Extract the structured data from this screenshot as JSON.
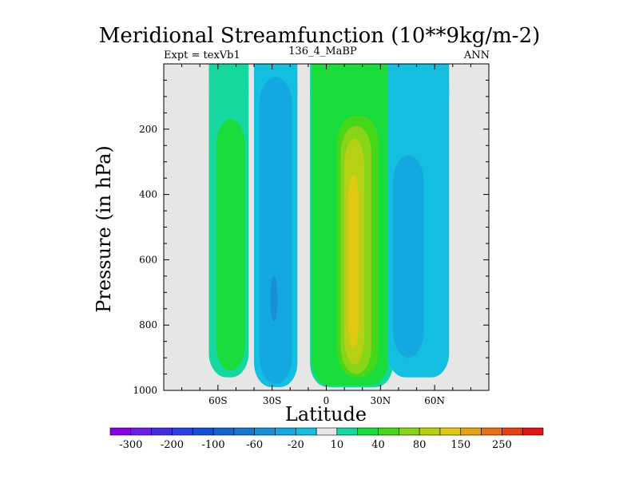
{
  "chart_data": {
    "type": "heatmap",
    "title": "Meridional Streamfunction (10**9kg/m-2)",
    "subtitle_left": "Expt = texVb1",
    "subtitle_center": "136_4_MaBP",
    "subtitle_right": "ANN",
    "xlabel": "Latitude",
    "ylabel": "Pressure (in hPa)",
    "xlim": [
      -90,
      90
    ],
    "ylim": [
      1000,
      0
    ],
    "x_ticks": [
      -60,
      -30,
      0,
      30,
      60
    ],
    "x_tick_labels": [
      "60S",
      "30S",
      "0",
      "30N",
      "60N"
    ],
    "y_ticks": [
      200,
      400,
      600,
      800,
      1000
    ],
    "y_tick_labels": [
      "200",
      "400",
      "600",
      "800",
      "1000"
    ],
    "colorbar": {
      "levels": [
        -300,
        -250,
        -200,
        -150,
        -100,
        -80,
        -60,
        -40,
        -20,
        -10,
        10,
        20,
        40,
        60,
        80,
        100,
        150,
        200,
        250,
        300
      ],
      "labels": [
        "-300",
        "-200",
        "-100",
        "-60",
        "-20",
        "10",
        "40",
        "80",
        "150",
        "250"
      ],
      "colors": [
        "#8a00e6",
        "#6a1ee6",
        "#4230e0",
        "#2a40e6",
        "#1450d8",
        "#1464d0",
        "#1478d0",
        "#1890d8",
        "#14a8e0",
        "#14bee0",
        "#e6e6e6",
        "#14d8a0",
        "#18dc3c",
        "#44d818",
        "#88d418",
        "#b8d014",
        "#e0c814",
        "#e8a014",
        "#e87014",
        "#e84014",
        "#e01414"
      ]
    },
    "contour_regions": [
      {
        "name": "band-60S",
        "min_value": 10,
        "max_value": 20,
        "lat_range": [
          -65,
          -43
        ],
        "p_range": [
          0,
          960
        ]
      },
      {
        "name": "core-60S",
        "min_value": 20,
        "max_value": 40,
        "lat_range": [
          -61,
          -45
        ],
        "p_range": [
          170,
          940
        ]
      },
      {
        "name": "band-30S",
        "min_value": -20,
        "max_value": -10,
        "lat_range": [
          -40,
          -16
        ],
        "p_range": [
          0,
          990
        ]
      },
      {
        "name": "core-30S",
        "min_value": -40,
        "max_value": -20,
        "lat_range": [
          -37,
          -19
        ],
        "p_range": [
          40,
          980
        ]
      },
      {
        "name": "inner-30S",
        "min_value": -60,
        "max_value": -40,
        "lat_range": [
          -31,
          -27
        ],
        "p_range": [
          650,
          790
        ]
      },
      {
        "name": "band-eq-N",
        "min_value": 10,
        "max_value": 20,
        "lat_range": [
          -9,
          37
        ],
        "p_range": [
          0,
          990
        ]
      },
      {
        "name": "core-eq-N",
        "min_value": 20,
        "max_value": 40,
        "lat_range": [
          -8,
          34
        ],
        "p_range": [
          0,
          985
        ]
      },
      {
        "name": "level-60",
        "min_value": 40,
        "max_value": 60,
        "lat_range": [
          6,
          29
        ],
        "p_range": [
          160,
          960
        ]
      },
      {
        "name": "level-80",
        "min_value": 60,
        "max_value": 80,
        "lat_range": [
          8,
          25
        ],
        "p_range": [
          190,
          950
        ]
      },
      {
        "name": "level-100",
        "min_value": 80,
        "max_value": 100,
        "lat_range": [
          10,
          21
        ],
        "p_range": [
          230,
          920
        ]
      },
      {
        "name": "level-150",
        "min_value": 100,
        "max_value": 150,
        "lat_range": [
          12,
          18
        ],
        "p_range": [
          340,
          870
        ]
      },
      {
        "name": "band-50N",
        "min_value": -20,
        "max_value": -10,
        "lat_range": [
          34,
          68
        ],
        "p_range": [
          0,
          960
        ]
      },
      {
        "name": "core-50N",
        "min_value": -40,
        "max_value": -20,
        "lat_range": [
          37,
          54
        ],
        "p_range": [
          280,
          900
        ]
      }
    ]
  }
}
